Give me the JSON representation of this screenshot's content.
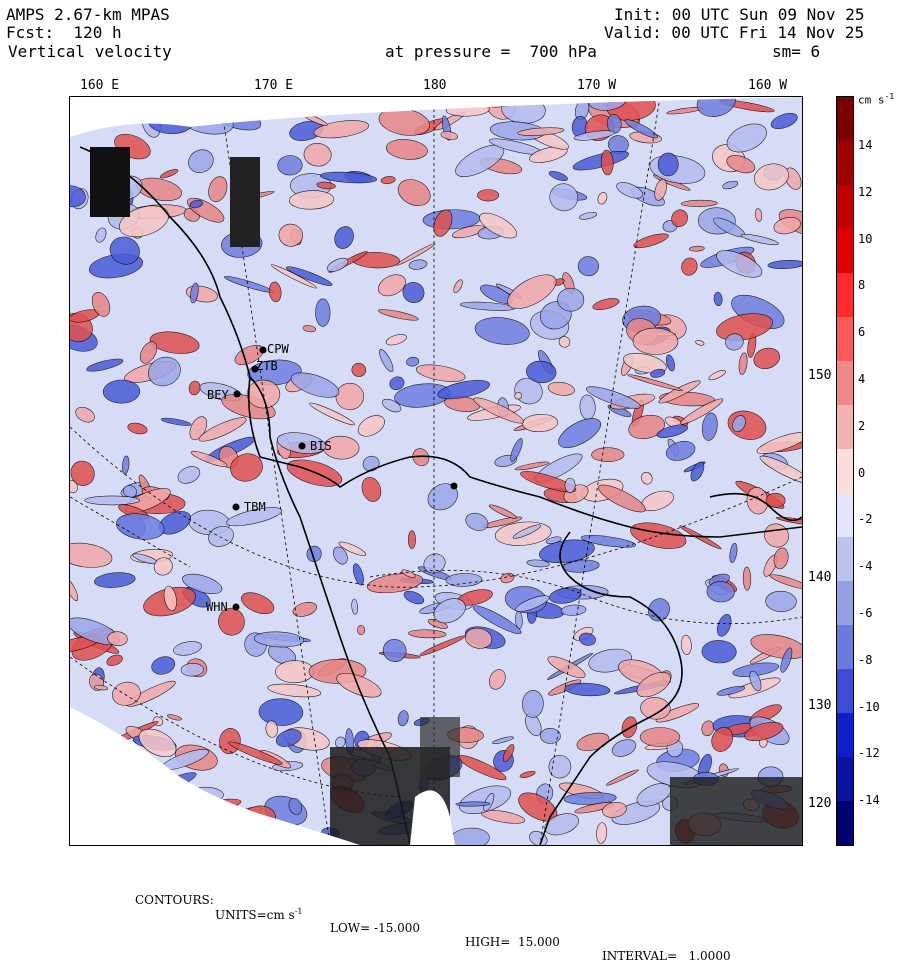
{
  "header": {
    "model": "AMPS 2.67-km MPAS",
    "forecast": "Fcst:  120 h",
    "field": "Vertical velocity",
    "init": "Init: 00 UTC Sun 09 Nov 25",
    "valid": "Valid: 00 UTC Fri 14 Nov 25",
    "level": "at pressure =  700 hPa",
    "smooth": "sm= 6"
  },
  "lon_labels": [
    "160 E",
    "170 E",
    "180",
    "170 W",
    "160 W"
  ],
  "lat_labels": [
    "150 W",
    "140 W",
    "130 W",
    "120 W"
  ],
  "colorbar": {
    "unit": "cm s",
    "unit_exp": "-1",
    "ticks": [
      "14",
      "12",
      "10",
      "8",
      "6",
      "4",
      "2",
      "0",
      "-2",
      "-4",
      "-6",
      "-8",
      "-10",
      "-12",
      "-14"
    ],
    "colors": [
      "#7a0000",
      "#a00000",
      "#c00000",
      "#e00000",
      "#ff2a2a",
      "#ff5a5a",
      "#f08a8a",
      "#f4b4b4",
      "#fcdede",
      "#e6e6fa",
      "#bcc4ee",
      "#96a0e4",
      "#6c7ae0",
      "#3c4cd8",
      "#0e1ec8",
      "#0a14a0",
      "#00006e"
    ]
  },
  "stations": [
    "CPW",
    "ZTB",
    "BEY",
    "BIS",
    "TBM",
    "WHN"
  ],
  "footer": {
    "contours": "CONTOURS:",
    "units": "UNITS=cm s",
    "units_exp": "-1",
    "low": "LOW= -15.000",
    "high": "HIGH=  15.000",
    "interval": "INTERVAL=   1.0000"
  },
  "theme": {
    "land_blue": "#c8cff2",
    "positive": "#f2a8a8",
    "negative": "#6f7fe0",
    "coast": "#000000"
  }
}
